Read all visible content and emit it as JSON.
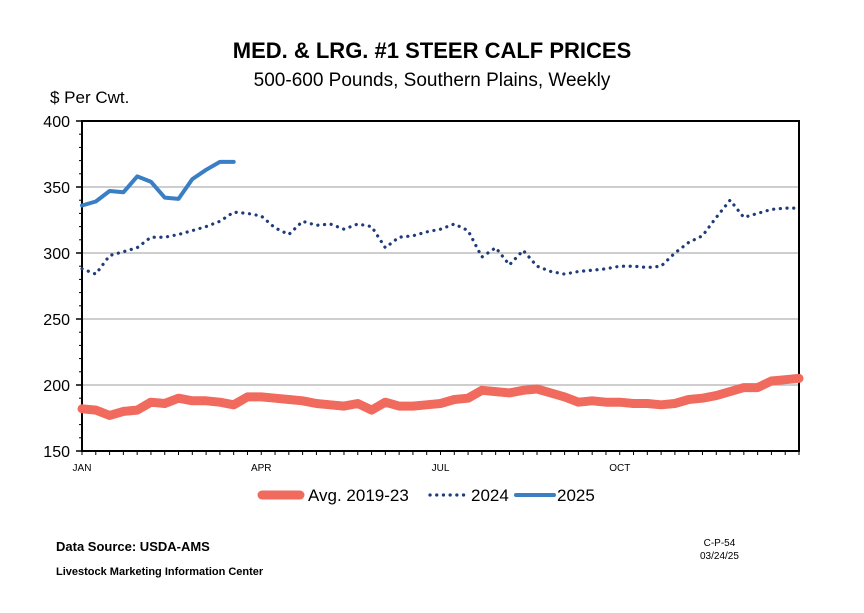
{
  "chart_data": {
    "type": "line",
    "title": "MED. & LRG. #1 STEER CALF PRICES",
    "subtitle": "500-600 Pounds, Southern Plains, Weekly",
    "ylabel": "$ Per Cwt.",
    "ylim": [
      150,
      400
    ],
    "yticks": [
      "400",
      "350",
      "300",
      "250",
      "200",
      "150"
    ],
    "xlim": [
      1,
      53
    ],
    "xticks": [
      {
        "label": "JAN",
        "week": 1
      },
      {
        "label": "APR",
        "week": 14
      },
      {
        "label": "JUL",
        "week": 27
      },
      {
        "label": "OCT",
        "week": 40
      }
    ],
    "grid": true,
    "legend": "bottom",
    "series": [
      {
        "name": "Avg. 2019-23",
        "color": "#f06a5e",
        "style": "thick",
        "x": [
          1,
          2,
          3,
          4,
          5,
          6,
          7,
          8,
          9,
          10,
          11,
          12,
          13,
          14,
          15,
          16,
          17,
          18,
          19,
          20,
          21,
          22,
          23,
          24,
          25,
          26,
          27,
          28,
          29,
          30,
          31,
          32,
          33,
          34,
          35,
          36,
          37,
          38,
          39,
          40,
          41,
          42,
          43,
          44,
          45,
          46,
          47,
          48,
          49,
          50,
          51,
          52,
          53
        ],
        "values": [
          182,
          181,
          177,
          180,
          181,
          187,
          186,
          190,
          188,
          188,
          187,
          185,
          191,
          191,
          190,
          189,
          188,
          186,
          185,
          184,
          186,
          181,
          187,
          184,
          184,
          185,
          186,
          189,
          190,
          196,
          195,
          194,
          196,
          197,
          194,
          191,
          187,
          188,
          187,
          187,
          186,
          186,
          185,
          186,
          189,
          190,
          192,
          195,
          198,
          198,
          203,
          204,
          205
        ]
      },
      {
        "name": "2024",
        "color": "#1f3b7a",
        "style": "dotted",
        "x": [
          1,
          2,
          3,
          4,
          5,
          6,
          7,
          8,
          9,
          10,
          11,
          12,
          13,
          14,
          15,
          16,
          17,
          18,
          19,
          20,
          21,
          22,
          23,
          24,
          25,
          26,
          27,
          28,
          29,
          30,
          31,
          32,
          33,
          34,
          35,
          36,
          37,
          38,
          39,
          40,
          41,
          42,
          43,
          44,
          45,
          46,
          47,
          48,
          49,
          50,
          51,
          52,
          53
        ],
        "values": [
          288,
          284,
          298,
          301,
          304,
          312,
          312,
          314,
          317,
          320,
          324,
          331,
          330,
          328,
          319,
          314,
          324,
          321,
          322,
          318,
          322,
          320,
          304,
          312,
          313,
          316,
          318,
          322,
          317,
          297,
          304,
          291,
          302,
          290,
          286,
          284,
          286,
          287,
          288,
          290,
          290,
          289,
          290,
          300,
          308,
          313,
          327,
          340,
          327,
          330,
          333,
          334,
          334
        ]
      },
      {
        "name": "2025",
        "color": "#3a7ec4",
        "style": "solid",
        "x": [
          1,
          2,
          3,
          4,
          5,
          6,
          7,
          8,
          9,
          10,
          11,
          12
        ],
        "values": [
          336,
          339,
          347,
          346,
          358,
          354,
          342,
          341,
          356,
          363,
          369,
          369
        ]
      }
    ]
  },
  "footer": {
    "source": "Data Source:  USDA-AMS",
    "center": "Livestock Marketing Information Center",
    "code": "C-P-54",
    "date": "03/24/25"
  }
}
